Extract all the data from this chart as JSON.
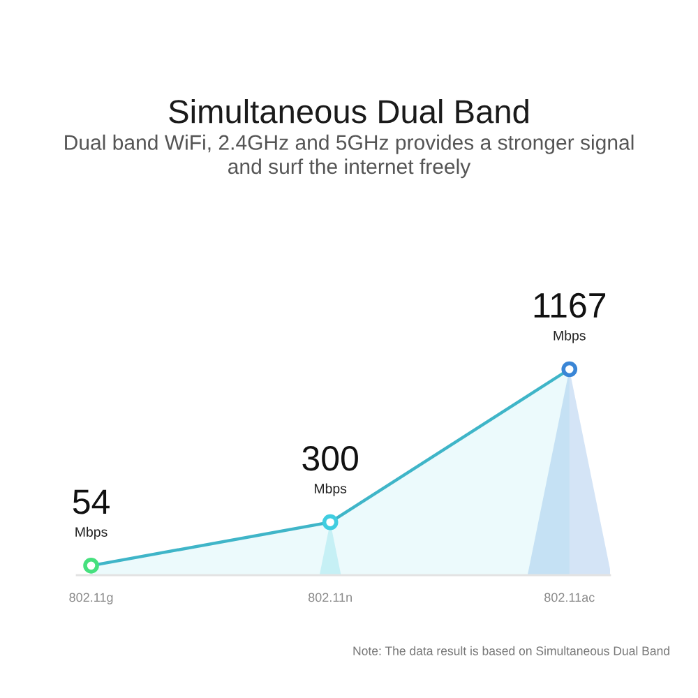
{
  "chart_data": {
    "type": "area",
    "title": "Simultaneous Dual Band",
    "subtitle": "Dual band WiFi, 2.4GHz and 5GHz provides a stronger signal\nand surf the internet freely",
    "categories": [
      "802.11g",
      "802.11n",
      "802.11ac"
    ],
    "series": [
      {
        "color": "#3fb5c8",
        "colors": [
          "#46e07e",
          "#40cde0",
          "#3a86d6"
        ],
        "values": [
          54,
          300,
          1167
        ]
      }
    ],
    "tick_labels": "x",
    "marker": "circle",
    "data_labels": true,
    "annotations": [
      {
        "text": "Mbps",
        "x": "802.11g",
        "y": 54
      },
      {
        "text": "Mbps",
        "x": "802.11n",
        "y": 300
      },
      {
        "text": "Mbps",
        "x": "802.11ac",
        "y": 1167
      },
      "Note: The data result is based on Simultaneous Dual Band"
    ]
  }
}
